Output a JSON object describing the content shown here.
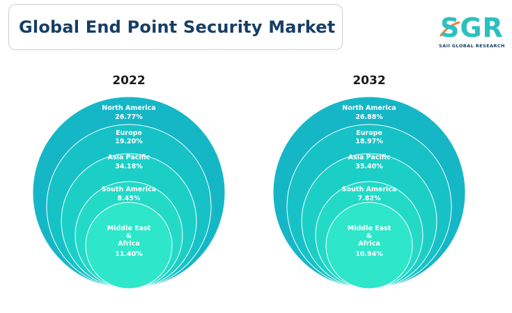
{
  "title": "Global End Point Security Market",
  "logo": {
    "name": "SGR",
    "subtitle": "SAII GLOBAL RESEARCH"
  },
  "colors": {
    "title": "#163e66",
    "ring_outer": "#15b7c7",
    "ring_2": "#17c2c6",
    "ring_3": "#1ccfc6",
    "ring_4": "#23dac7",
    "ring_inner": "#2ee6ca",
    "logo_teal": "#2bc0bf",
    "logo_orange": "#f07f3c"
  },
  "chart_data": [
    {
      "type": "nested-circle",
      "title": "2022",
      "categories": [
        "North America",
        "Europe",
        "Asia Pacific",
        "South America",
        "Middle East & Africa"
      ],
      "label_lines": [
        [
          "North America"
        ],
        [
          "Europe"
        ],
        [
          "Asia Pacific"
        ],
        [
          "South America"
        ],
        [
          "Middle East",
          "&",
          "Africa"
        ]
      ],
      "values": [
        26.77,
        19.2,
        34.18,
        8.45,
        11.4
      ],
      "value_labels": [
        "26.77%",
        "19.20%",
        "34.18%",
        "8.45%",
        "11.40%"
      ]
    },
    {
      "type": "nested-circle",
      "title": "2032",
      "categories": [
        "North America",
        "Europe",
        "Asia Pacific",
        "South America",
        "Middle East & Africa"
      ],
      "label_lines": [
        [
          "North America"
        ],
        [
          "Europe"
        ],
        [
          "Asia Pacific"
        ],
        [
          "South America"
        ],
        [
          "Middle East",
          "&",
          "Africa"
        ]
      ],
      "values": [
        26.88,
        18.97,
        35.4,
        7.82,
        10.94
      ],
      "value_labels": [
        "26.88%",
        "18.97%",
        "35.40%",
        "7.82%",
        "10.94%"
      ]
    }
  ]
}
